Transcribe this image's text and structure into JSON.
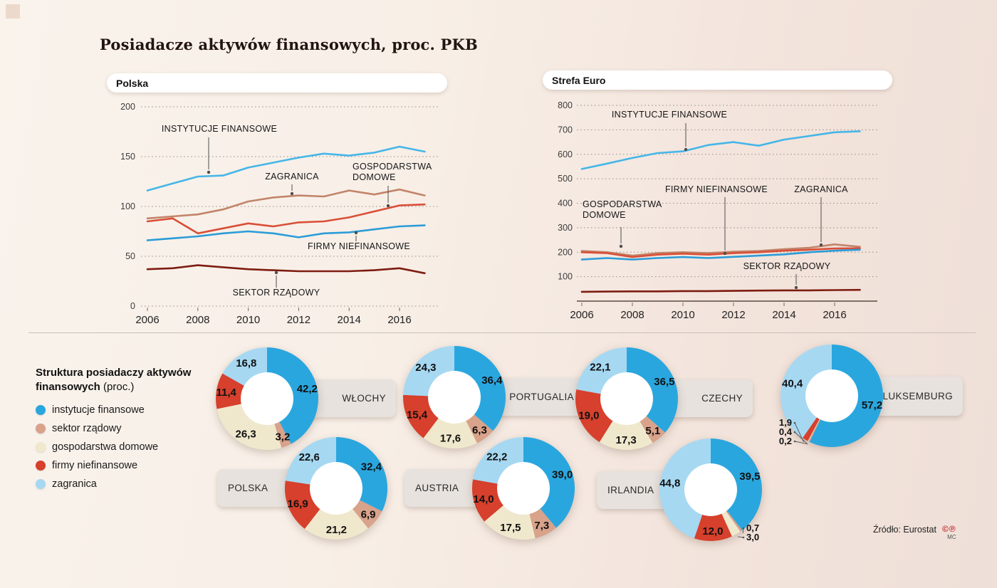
{
  "page": {
    "title": "Posiadacze aktywów finansowych, proc. PKB",
    "source": "Źródło: Eurostat",
    "marks": "©℗",
    "marks_sub": "MC"
  },
  "chart_data": [
    {
      "type": "line",
      "title": "Polska",
      "x": [
        2006,
        2007,
        2008,
        2009,
        2010,
        2011,
        2012,
        2013,
        2014,
        2015,
        2016,
        2017
      ],
      "xticks": [
        2006,
        2008,
        2010,
        2012,
        2014,
        2016
      ],
      "ylim": [
        0,
        200
      ],
      "yticks": [
        0,
        50,
        100,
        150,
        200
      ],
      "grid": "dotted",
      "series": [
        {
          "name": "INSTYTUCJE FINANSOWE",
          "color": "#45b6e8",
          "values": [
            116,
            123,
            130,
            131,
            139,
            144,
            149,
            153,
            151,
            154,
            160,
            155
          ]
        },
        {
          "name": "ZAGRANICA",
          "color": "#c2846a",
          "values": [
            88,
            90,
            92,
            97,
            105,
            109,
            111,
            110,
            116,
            112,
            117,
            111
          ]
        },
        {
          "name": "GOSPODARSTWA DOMOWE",
          "color": "#d94f38",
          "values": [
            85,
            88,
            73,
            78,
            83,
            80,
            84,
            85,
            89,
            95,
            101,
            102
          ]
        },
        {
          "name": "FIRMY NIEFINANSOWE",
          "color": "#2b9cd8",
          "values": [
            66,
            68,
            70,
            73,
            75,
            73,
            69,
            73,
            74,
            77,
            80,
            81
          ]
        },
        {
          "name": "SEKTOR RZĄDOWY",
          "color": "#7e1c10",
          "values": [
            37,
            38,
            41,
            39,
            37,
            36,
            35,
            35,
            35,
            36,
            38,
            33
          ]
        }
      ]
    },
    {
      "type": "line",
      "title": "Strefa Euro",
      "x": [
        2006,
        2007,
        2008,
        2009,
        2010,
        2011,
        2012,
        2013,
        2014,
        2015,
        2016,
        2017
      ],
      "xticks": [
        2006,
        2008,
        2010,
        2012,
        2014,
        2016
      ],
      "ylim": [
        0,
        800
      ],
      "yticks": [
        100,
        200,
        300,
        400,
        500,
        600,
        700,
        800
      ],
      "grid": "dotted",
      "series": [
        {
          "name": "INSTYTUCJE FINANSOWE",
          "color": "#45b6e8",
          "values": [
            540,
            562,
            585,
            605,
            612,
            638,
            650,
            635,
            660,
            675,
            690,
            694
          ]
        },
        {
          "name": "ZAGRANICA",
          "color": "#c2846a",
          "values": [
            205,
            200,
            186,
            196,
            200,
            196,
            202,
            205,
            212,
            218,
            232,
            222
          ]
        },
        {
          "name": "GOSPODARSTWA DOMOWE",
          "color": "#d94f38",
          "values": [
            200,
            196,
            180,
            190,
            194,
            190,
            196,
            200,
            206,
            210,
            215,
            216
          ]
        },
        {
          "name": "FIRMY NIEFINANSOWE",
          "color": "#2b9cd8",
          "values": [
            170,
            176,
            170,
            176,
            180,
            176,
            181,
            186,
            191,
            200,
            206,
            210
          ]
        },
        {
          "name": "SEKTOR RZĄDOWY",
          "color": "#7e1c10",
          "values": [
            38,
            39,
            40,
            40,
            41,
            41,
            42,
            43,
            44,
            44,
            45,
            46
          ]
        }
      ]
    },
    {
      "type": "donut-set",
      "title_bold": "Struktura posiadaczy aktywów finansowych",
      "title_suffix": "(proc.)",
      "legend": [
        {
          "label": "instytucje finansowe",
          "color": "#2aa6de"
        },
        {
          "label": "sektor rządowy",
          "color": "#d8a28b"
        },
        {
          "label": "gospodarstwa domowe",
          "color": "#f0e8cd"
        },
        {
          "label": "firmy niefinansowe",
          "color": "#d6402c"
        },
        {
          "label": "zagranica",
          "color": "#a6d8f2"
        }
      ],
      "countries": [
        {
          "name": "WŁOCHY",
          "values": [
            42.2,
            3.2,
            26.3,
            11.4,
            16.8
          ],
          "labels": [
            "42,2",
            "3,2",
            "26,3",
            "11,4",
            "16,8"
          ]
        },
        {
          "name": "PORTUGALIA",
          "values": [
            36.4,
            6.3,
            17.6,
            15.4,
            24.3
          ],
          "labels": [
            "36,4",
            "6,3",
            "17,6",
            "15,4",
            "24,3"
          ]
        },
        {
          "name": "CZECHY",
          "values": [
            36.5,
            5.1,
            17.3,
            19.0,
            22.1
          ],
          "labels": [
            "36,5",
            "5,1",
            "17,3",
            "19,0",
            "22,1"
          ]
        },
        {
          "name": "LUKSEMBURG",
          "values": [
            57.2,
            0.4,
            0.2,
            1.9,
            40.4
          ],
          "labels": [
            "57,2",
            "0,4",
            "0,2",
            "1,9",
            "40,4"
          ]
        },
        {
          "name": "POLSKA",
          "values": [
            32.4,
            6.9,
            21.2,
            16.9,
            22.6
          ],
          "labels": [
            "32,4",
            "6,9",
            "21,2",
            "16,9",
            "22,6"
          ]
        },
        {
          "name": "AUSTRIA",
          "values": [
            39.0,
            7.3,
            17.5,
            14.0,
            22.2
          ],
          "labels": [
            "39,0",
            "7,3",
            "17,5",
            "14,0",
            "22,2"
          ]
        },
        {
          "name": "IRLANDIA",
          "values": [
            39.5,
            0.7,
            3.0,
            12.0,
            44.8
          ],
          "labels": [
            "39,5",
            "0,7",
            "3,0",
            "12,0",
            "44,8"
          ]
        }
      ]
    }
  ]
}
